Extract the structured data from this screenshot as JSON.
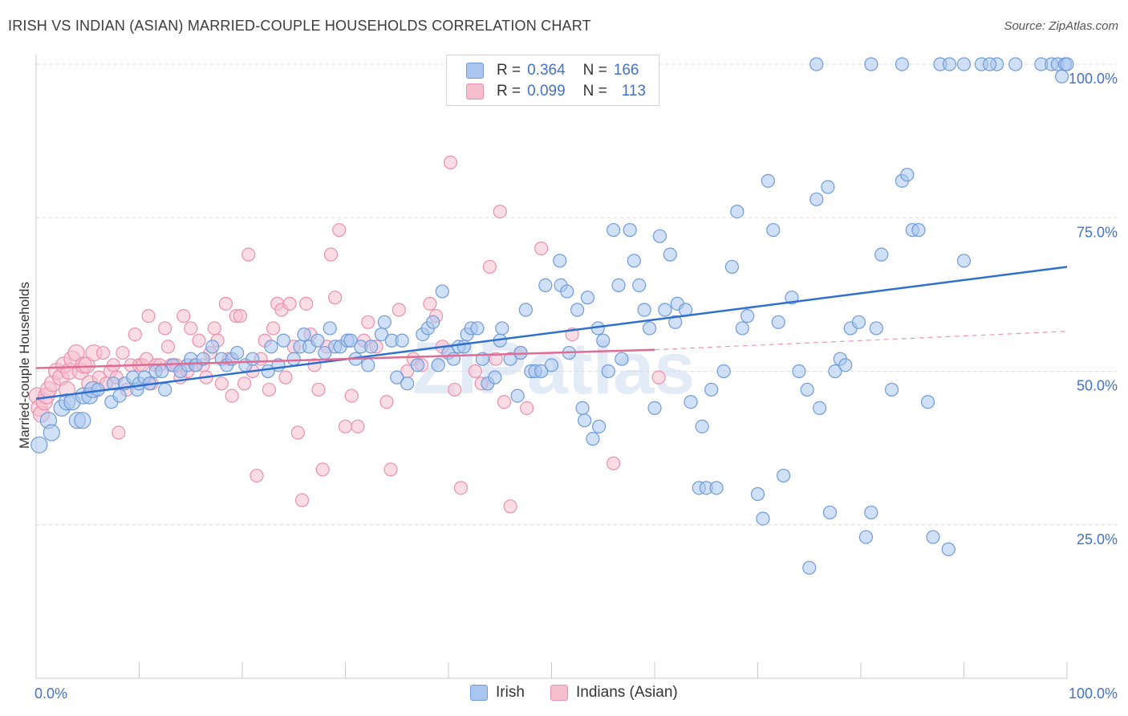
{
  "title": "IRISH VS INDIAN (ASIAN) MARRIED-COUPLE HOUSEHOLDS CORRELATION CHART",
  "source": "Source: ZipAtlas.com",
  "watermark": "ZIPatlas",
  "legend": {
    "irish": {
      "r_label": "R =",
      "r_value": "0.364",
      "n_label": "N =",
      "n_value": "166"
    },
    "indian": {
      "r_label": "R =",
      "r_value": "0.099",
      "n_label": "N =",
      "n_value": "113"
    }
  },
  "bottom_legend": {
    "irish": "Irish",
    "indian": "Indians (Asian)"
  },
  "colors": {
    "irish_fill": "#a9c6f0",
    "irish_stroke": "#6f9bd8",
    "irish_line": "#2f6fd0",
    "indian_fill": "#f5bfd0",
    "indian_stroke": "#ea90ad",
    "indian_line": "#e26b93",
    "axis_text": "#4472c4",
    "grid": "#dddddd"
  },
  "chart_data": {
    "type": "scatter",
    "title": "IRISH VS INDIAN (ASIAN) MARRIED-COUPLE HOUSEHOLDS CORRELATION CHART",
    "xlabel": "",
    "ylabel": "Married-couple Households",
    "xlim": [
      0,
      100
    ],
    "ylim": [
      0,
      100
    ],
    "x_tick_labels": [
      "0.0%",
      "100.0%"
    ],
    "y_tick_labels": [
      "25.0%",
      "50.0%",
      "75.0%",
      "100.0%"
    ],
    "grid": "horizontal dashed",
    "legend_position": "top-center",
    "series": [
      {
        "name": "Irish",
        "r": 0.364,
        "n": 166,
        "trend": {
          "x": [
            0,
            100
          ],
          "y": [
            45.5,
            67.0
          ],
          "style": "solid"
        },
        "points": [
          [
            0.3,
            38
          ],
          [
            1.2,
            42
          ],
          [
            1.5,
            40
          ],
          [
            2.5,
            44
          ],
          [
            3.0,
            45
          ],
          [
            3.5,
            45
          ],
          [
            4.0,
            42
          ],
          [
            4.5,
            42
          ],
          [
            4.6,
            46
          ],
          [
            5.2,
            46
          ],
          [
            5.5,
            47
          ],
          [
            6.0,
            47
          ],
          [
            7.3,
            45
          ],
          [
            7.5,
            48
          ],
          [
            8.1,
            46
          ],
          [
            8.6,
            48
          ],
          [
            9.4,
            49
          ],
          [
            9.8,
            47
          ],
          [
            10.0,
            48
          ],
          [
            10.5,
            49
          ],
          [
            11.0,
            48
          ],
          [
            11.6,
            50
          ],
          [
            12.2,
            50
          ],
          [
            12.5,
            47
          ],
          [
            13.3,
            51
          ],
          [
            14.0,
            50
          ],
          [
            14.7,
            51
          ],
          [
            15.0,
            52
          ],
          [
            15.5,
            51
          ],
          [
            16.2,
            52
          ],
          [
            17.1,
            54
          ],
          [
            18.0,
            52
          ],
          [
            18.5,
            51
          ],
          [
            19.0,
            52
          ],
          [
            19.5,
            53
          ],
          [
            20.3,
            51
          ],
          [
            21.0,
            52
          ],
          [
            22.5,
            50
          ],
          [
            22.8,
            54
          ],
          [
            23.5,
            51
          ],
          [
            24.0,
            55
          ],
          [
            25.0,
            52
          ],
          [
            25.6,
            54
          ],
          [
            26.0,
            56
          ],
          [
            26.5,
            54
          ],
          [
            27.3,
            55
          ],
          [
            28.0,
            53
          ],
          [
            28.5,
            57
          ],
          [
            29.0,
            54
          ],
          [
            29.5,
            54
          ],
          [
            30.2,
            55
          ],
          [
            30.5,
            55
          ],
          [
            31.0,
            52
          ],
          [
            31.5,
            54
          ],
          [
            32.2,
            51
          ],
          [
            32.5,
            54
          ],
          [
            33.5,
            56
          ],
          [
            33.8,
            58
          ],
          [
            34.5,
            55
          ],
          [
            35.0,
            49
          ],
          [
            35.5,
            55
          ],
          [
            36.0,
            48
          ],
          [
            37.0,
            51
          ],
          [
            37.5,
            56
          ],
          [
            38.0,
            57
          ],
          [
            38.5,
            58
          ],
          [
            39.0,
            51
          ],
          [
            39.4,
            63
          ],
          [
            40.0,
            53
          ],
          [
            40.5,
            52
          ],
          [
            41.0,
            54
          ],
          [
            41.5,
            54
          ],
          [
            41.8,
            56
          ],
          [
            42.2,
            57
          ],
          [
            42.8,
            57
          ],
          [
            43.3,
            52
          ],
          [
            43.8,
            48
          ],
          [
            44.5,
            49
          ],
          [
            45.0,
            55
          ],
          [
            45.2,
            57
          ],
          [
            46.0,
            52
          ],
          [
            46.7,
            46
          ],
          [
            47.0,
            53
          ],
          [
            47.5,
            60
          ],
          [
            48.0,
            50
          ],
          [
            48.4,
            50
          ],
          [
            49.0,
            50
          ],
          [
            49.4,
            64
          ],
          [
            50.0,
            51
          ],
          [
            50.8,
            68
          ],
          [
            50.9,
            64
          ],
          [
            51.5,
            63
          ],
          [
            51.7,
            53
          ],
          [
            52.5,
            60
          ],
          [
            53.0,
            44
          ],
          [
            53.2,
            42
          ],
          [
            53.5,
            62
          ],
          [
            54.0,
            39
          ],
          [
            54.5,
            57
          ],
          [
            54.6,
            41
          ],
          [
            55.0,
            55
          ],
          [
            55.5,
            50
          ],
          [
            56.0,
            73
          ],
          [
            56.5,
            64
          ],
          [
            56.8,
            52
          ],
          [
            57.6,
            73
          ],
          [
            58.0,
            68
          ],
          [
            58.5,
            64
          ],
          [
            59.0,
            60
          ],
          [
            59.5,
            57
          ],
          [
            60.0,
            44
          ],
          [
            60.5,
            72
          ],
          [
            61.0,
            60
          ],
          [
            61.5,
            69
          ],
          [
            62.0,
            58
          ],
          [
            62.2,
            61
          ],
          [
            63.0,
            60
          ],
          [
            63.5,
            45
          ],
          [
            64.3,
            31
          ],
          [
            64.6,
            41
          ],
          [
            65.0,
            31
          ],
          [
            65.5,
            47
          ],
          [
            66.0,
            31
          ],
          [
            66.7,
            50
          ],
          [
            67.5,
            67
          ],
          [
            68.0,
            76
          ],
          [
            68.5,
            57
          ],
          [
            69.0,
            59
          ],
          [
            70.0,
            30
          ],
          [
            70.5,
            26
          ],
          [
            71.0,
            81
          ],
          [
            71.5,
            73
          ],
          [
            72.0,
            58
          ],
          [
            72.5,
            33
          ],
          [
            73.3,
            62
          ],
          [
            74.0,
            50
          ],
          [
            74.8,
            47
          ],
          [
            75.0,
            18
          ],
          [
            75.7,
            78
          ],
          [
            76.0,
            44
          ],
          [
            76.8,
            80
          ],
          [
            77.0,
            27
          ],
          [
            77.5,
            50
          ],
          [
            78.0,
            52
          ],
          [
            78.5,
            51
          ],
          [
            79.0,
            57
          ],
          [
            79.8,
            58
          ],
          [
            80.5,
            23
          ],
          [
            81.0,
            27
          ],
          [
            81.5,
            57
          ],
          [
            82.0,
            69
          ],
          [
            83.0,
            47
          ],
          [
            84.0,
            81
          ],
          [
            84.5,
            82
          ],
          [
            85.0,
            73
          ],
          [
            85.6,
            73
          ],
          [
            86.5,
            45
          ],
          [
            87.0,
            23
          ],
          [
            88.5,
            21
          ],
          [
            90.0,
            68
          ],
          [
            75.7,
            100
          ],
          [
            81.0,
            100
          ],
          [
            84.0,
            100
          ],
          [
            87.7,
            100
          ],
          [
            88.6,
            100
          ],
          [
            90.0,
            100
          ],
          [
            91.7,
            100
          ],
          [
            93.2,
            100
          ],
          [
            95.0,
            100
          ],
          [
            97.5,
            100
          ],
          [
            98.5,
            100
          ],
          [
            99.1,
            100
          ],
          [
            99.5,
            98
          ],
          [
            99.8,
            100
          ],
          [
            100.0,
            100
          ],
          [
            92.5,
            100
          ]
        ]
      },
      {
        "name": "Indians (Asian)",
        "r": 0.099,
        "n": 113,
        "trend": {
          "x": [
            0,
            60
          ],
          "y": [
            50.5,
            53.5
          ],
          "style": "solid",
          "extension": {
            "x": [
              60,
              100
            ],
            "y": [
              53.5,
              56.5
            ],
            "style": "dashed"
          }
        },
        "points": [
          [
            0.1,
            46
          ],
          [
            0.3,
            44
          ],
          [
            0.5,
            43
          ],
          [
            0.8,
            45
          ],
          [
            1.0,
            46
          ],
          [
            1.2,
            47
          ],
          [
            1.6,
            48
          ],
          [
            2.0,
            50
          ],
          [
            2.4,
            49
          ],
          [
            2.7,
            51
          ],
          [
            3.0,
            47
          ],
          [
            3.2,
            50
          ],
          [
            3.5,
            52
          ],
          [
            3.9,
            53
          ],
          [
            4.3,
            50
          ],
          [
            4.6,
            51
          ],
          [
            4.9,
            51
          ],
          [
            5.2,
            48
          ],
          [
            5.6,
            53
          ],
          [
            6.1,
            49
          ],
          [
            6.5,
            53
          ],
          [
            6.8,
            48
          ],
          [
            7.2,
            50
          ],
          [
            7.5,
            51
          ],
          [
            7.8,
            49
          ],
          [
            8.0,
            40
          ],
          [
            8.4,
            53
          ],
          [
            8.8,
            47
          ],
          [
            9.2,
            51
          ],
          [
            9.6,
            56
          ],
          [
            10.0,
            51
          ],
          [
            10.3,
            51
          ],
          [
            10.7,
            52
          ],
          [
            10.9,
            59
          ],
          [
            11.2,
            48
          ],
          [
            11.6,
            51
          ],
          [
            12.0,
            51
          ],
          [
            12.5,
            57
          ],
          [
            12.8,
            54
          ],
          [
            13.1,
            51
          ],
          [
            13.6,
            51
          ],
          [
            14.0,
            49
          ],
          [
            14.3,
            59
          ],
          [
            14.7,
            50
          ],
          [
            15.0,
            57
          ],
          [
            15.4,
            51
          ],
          [
            15.8,
            55
          ],
          [
            16.2,
            51
          ],
          [
            16.5,
            49
          ],
          [
            16.9,
            53
          ],
          [
            17.3,
            57
          ],
          [
            17.6,
            55
          ],
          [
            18.0,
            48
          ],
          [
            18.4,
            61
          ],
          [
            18.7,
            52
          ],
          [
            19.0,
            46
          ],
          [
            19.4,
            59
          ],
          [
            19.8,
            59
          ],
          [
            20.2,
            48
          ],
          [
            20.6,
            69
          ],
          [
            21.0,
            50
          ],
          [
            21.4,
            33
          ],
          [
            21.8,
            52
          ],
          [
            22.2,
            55
          ],
          [
            22.6,
            47
          ],
          [
            23.0,
            57
          ],
          [
            23.4,
            61
          ],
          [
            23.8,
            60
          ],
          [
            24.2,
            49
          ],
          [
            24.6,
            61
          ],
          [
            25.0,
            54
          ],
          [
            25.4,
            40
          ],
          [
            25.8,
            29
          ],
          [
            26.2,
            61
          ],
          [
            26.6,
            56
          ],
          [
            27.0,
            51
          ],
          [
            27.4,
            47
          ],
          [
            27.8,
            34
          ],
          [
            28.2,
            54
          ],
          [
            28.6,
            69
          ],
          [
            29.0,
            62
          ],
          [
            29.4,
            73
          ],
          [
            30.0,
            41
          ],
          [
            30.6,
            46
          ],
          [
            31.2,
            41
          ],
          [
            31.8,
            55
          ],
          [
            32.2,
            58
          ],
          [
            33.0,
            54
          ],
          [
            34.0,
            45
          ],
          [
            34.4,
            34
          ],
          [
            35.2,
            60
          ],
          [
            36.0,
            50
          ],
          [
            36.6,
            52
          ],
          [
            37.4,
            51
          ],
          [
            38.2,
            61
          ],
          [
            38.8,
            59
          ],
          [
            39.4,
            54
          ],
          [
            40.2,
            84
          ],
          [
            40.6,
            47
          ],
          [
            41.2,
            31
          ],
          [
            42.6,
            50
          ],
          [
            43.2,
            48
          ],
          [
            44.0,
            67
          ],
          [
            44.6,
            52
          ],
          [
            45.0,
            76
          ],
          [
            45.4,
            45
          ],
          [
            46.0,
            28
          ],
          [
            47.0,
            53
          ],
          [
            47.6,
            44
          ],
          [
            49.0,
            70
          ],
          [
            52.0,
            56
          ],
          [
            56.0,
            35
          ],
          [
            60.4,
            49
          ]
        ]
      }
    ]
  }
}
